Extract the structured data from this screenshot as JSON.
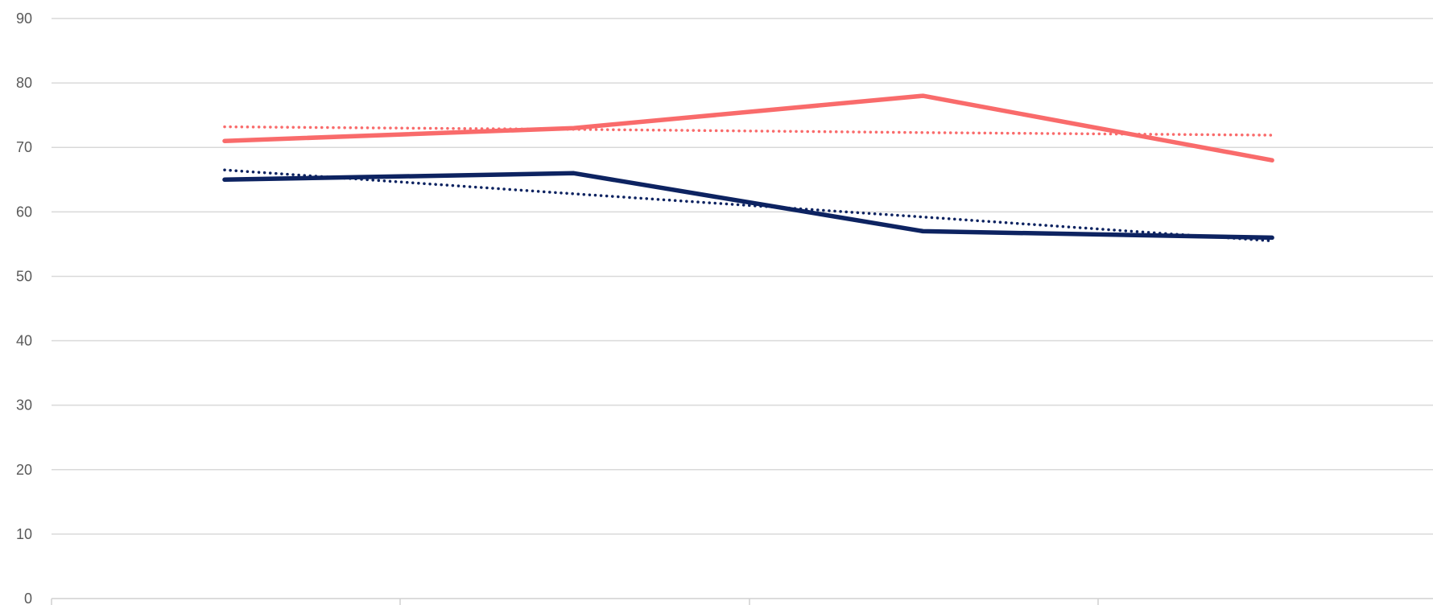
{
  "chart_data": {
    "type": "line",
    "categories": [
      "",
      "",
      "",
      ""
    ],
    "y_ticks": [
      "0",
      "10",
      "20",
      "30",
      "40",
      "50",
      "60",
      "70",
      "80",
      "90"
    ],
    "ylim": [
      0,
      90
    ],
    "grid": true,
    "title": "",
    "xlabel": "",
    "ylabel": "",
    "series": [
      {
        "values": [
          71,
          73,
          78,
          68
        ],
        "color": "#f96b6b",
        "style": "solid"
      },
      {
        "values": [
          73.2,
          72.8,
          72.3,
          71.9
        ],
        "color": "#f96b6b",
        "style": "dotted",
        "trendline_of": 0
      },
      {
        "values": [
          65,
          66,
          57,
          56
        ],
        "color": "#0d2361",
        "style": "solid"
      },
      {
        "values": [
          66.5,
          62.8,
          59.2,
          55.5
        ],
        "color": "#0d2361",
        "style": "dotted",
        "trendline_of": 2
      }
    ]
  }
}
